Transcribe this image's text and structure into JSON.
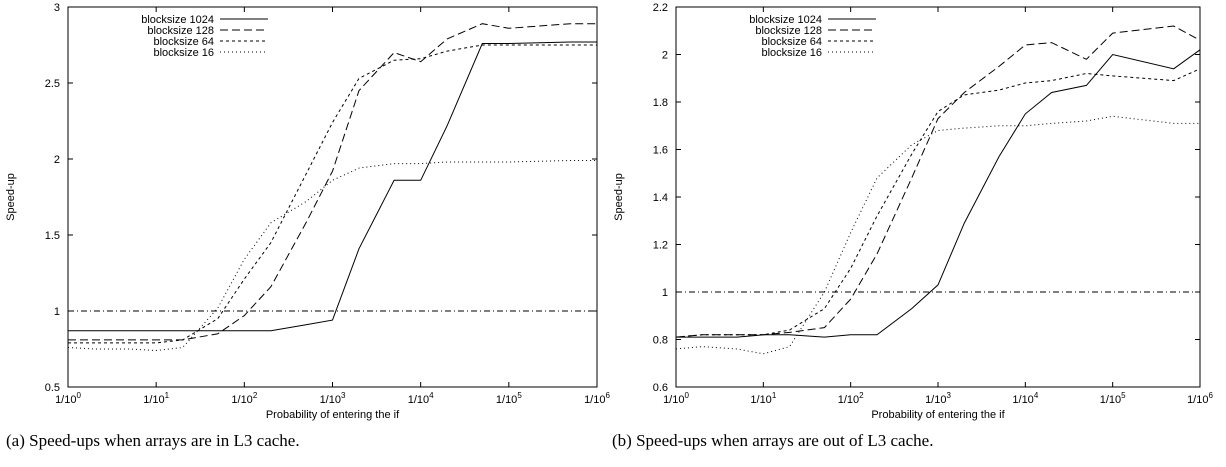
{
  "chart_data": [
    {
      "type": "line",
      "caption": "(a) Speed-ups when arrays are in L3 cache.",
      "xlabel": "Probability of entering the if",
      "ylabel": "Speed-up",
      "x_scale": "log",
      "xlim": [
        1,
        1000000
      ],
      "x_ticks": [
        1,
        10,
        100,
        1000,
        10000,
        100000,
        1000000
      ],
      "x_tick_labels": [
        "1/10^0",
        "1/10^1",
        "1/10^2",
        "1/10^3",
        "1/10^4",
        "1/10^5",
        "1/10^6"
      ],
      "ylim": [
        0.5,
        3
      ],
      "y_ticks": [
        0.5,
        1,
        1.5,
        2,
        2.5,
        3
      ],
      "y_tick_labels": [
        "0.5",
        "1",
        "1.5",
        "2",
        "2.5",
        "3"
      ],
      "grid": false,
      "legend_position": "top-left",
      "x": [
        1,
        2,
        5,
        10,
        20,
        50,
        100,
        200,
        500,
        1000,
        2000,
        5000,
        10000,
        20000,
        50000,
        100000,
        500000,
        1000000
      ],
      "reference_line": {
        "y": 1,
        "style": "dash-dot"
      },
      "series": [
        {
          "name": "blocksize 1024",
          "dash": "none",
          "values": [
            0.87,
            0.87,
            0.87,
            0.87,
            0.87,
            0.87,
            0.87,
            0.87,
            0.91,
            0.94,
            1.41,
            1.86,
            1.86,
            2.22,
            2.76,
            2.76,
            2.77,
            2.77
          ]
        },
        {
          "name": "blocksize 128",
          "dash": "8,4",
          "values": [
            0.81,
            0.81,
            0.81,
            0.81,
            0.81,
            0.85,
            0.97,
            1.16,
            1.58,
            1.92,
            2.45,
            2.7,
            2.64,
            2.79,
            2.89,
            2.86,
            2.89,
            2.89
          ]
        },
        {
          "name": "blocksize 64",
          "dash": "3,3",
          "values": [
            0.79,
            0.79,
            0.79,
            0.79,
            0.81,
            0.95,
            1.21,
            1.45,
            1.9,
            2.24,
            2.53,
            2.65,
            2.66,
            2.71,
            2.75,
            2.75,
            2.75,
            2.75
          ]
        },
        {
          "name": "blocksize 16",
          "dash": "1,3",
          "values": [
            0.76,
            0.75,
            0.75,
            0.74,
            0.76,
            1.02,
            1.34,
            1.58,
            1.72,
            1.86,
            1.94,
            1.97,
            1.97,
            1.98,
            1.98,
            1.98,
            1.99,
            1.99
          ]
        }
      ]
    },
    {
      "type": "line",
      "caption": "(b) Speed-ups when arrays are out of L3 cache.",
      "xlabel": "Probability of entering the if",
      "ylabel": "Speed-up",
      "x_scale": "log",
      "xlim": [
        1,
        1000000
      ],
      "x_ticks": [
        1,
        10,
        100,
        1000,
        10000,
        100000,
        1000000
      ],
      "x_tick_labels": [
        "1/10^0",
        "1/10^1",
        "1/10^2",
        "1/10^3",
        "1/10^4",
        "1/10^5",
        "1/10^6"
      ],
      "ylim": [
        0.6,
        2.2
      ],
      "y_ticks": [
        0.6,
        0.8,
        1,
        1.2,
        1.4,
        1.6,
        1.8,
        2,
        2.2
      ],
      "y_tick_labels": [
        "0.6",
        "0.8",
        "1",
        "1.2",
        "1.4",
        "1.6",
        "1.8",
        "2",
        "2.2"
      ],
      "grid": false,
      "legend_position": "top-left",
      "x": [
        1,
        2,
        5,
        10,
        20,
        50,
        100,
        200,
        500,
        1000,
        2000,
        5000,
        10000,
        20000,
        50000,
        100000,
        500000,
        1000000
      ],
      "reference_line": {
        "y": 1,
        "style": "dash-dot"
      },
      "series": [
        {
          "name": "blocksize 1024",
          "dash": "none",
          "values": [
            0.81,
            0.81,
            0.81,
            0.82,
            0.82,
            0.81,
            0.82,
            0.82,
            0.93,
            1.03,
            1.29,
            1.57,
            1.75,
            1.84,
            1.87,
            2.0,
            1.94,
            2.02
          ]
        },
        {
          "name": "blocksize 128",
          "dash": "8,4",
          "values": [
            0.81,
            0.82,
            0.82,
            0.82,
            0.83,
            0.85,
            0.97,
            1.16,
            1.48,
            1.73,
            1.84,
            1.95,
            2.04,
            2.05,
            1.98,
            2.09,
            2.12,
            2.06
          ]
        },
        {
          "name": "blocksize 64",
          "dash": "3,3",
          "values": [
            0.81,
            0.82,
            0.82,
            0.82,
            0.84,
            0.93,
            1.1,
            1.32,
            1.58,
            1.76,
            1.83,
            1.85,
            1.88,
            1.89,
            1.92,
            1.91,
            1.89,
            1.94
          ]
        },
        {
          "name": "blocksize 16",
          "dash": "1,3",
          "values": [
            0.76,
            0.77,
            0.76,
            0.74,
            0.77,
            1.0,
            1.25,
            1.48,
            1.62,
            1.68,
            1.69,
            1.7,
            1.7,
            1.71,
            1.72,
            1.74,
            1.71,
            1.71
          ]
        }
      ]
    }
  ]
}
